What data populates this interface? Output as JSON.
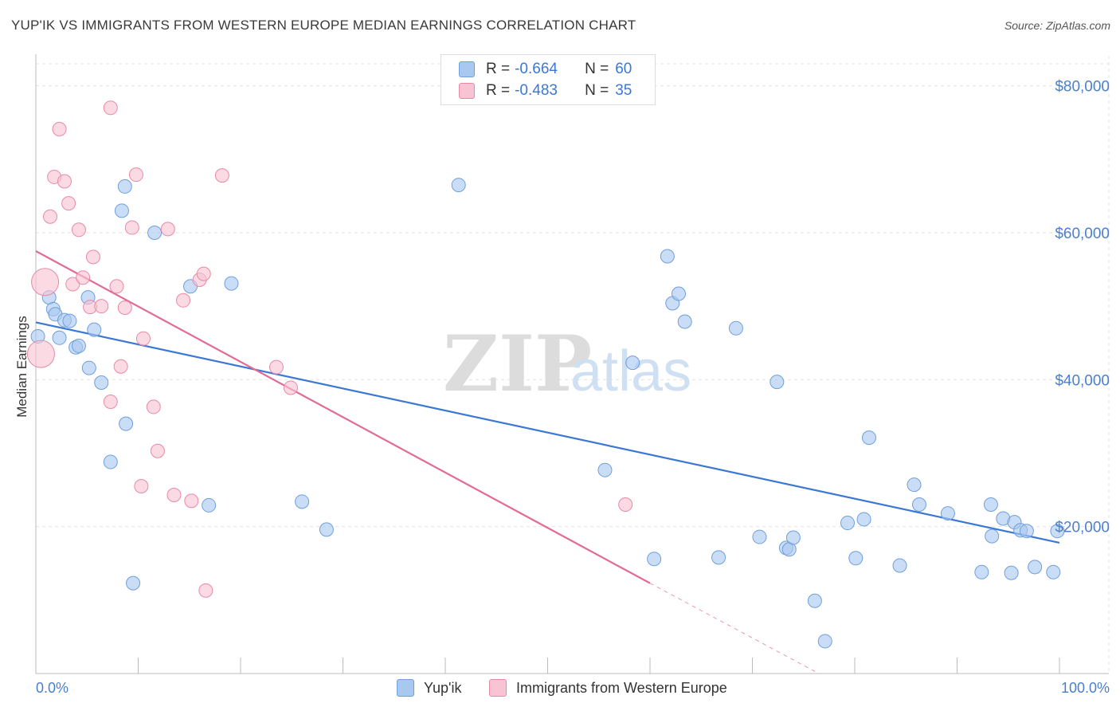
{
  "title": "YUP'IK VS IMMIGRANTS FROM WESTERN EUROPE MEDIAN EARNINGS CORRELATION CHART",
  "source": "Source: ZipAtlas.com",
  "watermark": {
    "zip": "ZIP",
    "atlas": "atlas"
  },
  "legend": {
    "rows": [
      {
        "r_label": "R = ",
        "r_value": "-0.664",
        "n_label": "N = ",
        "n_value": "60",
        "color": "#a9c8f0",
        "border": "#6f9fdc"
      },
      {
        "r_label": "R = ",
        "r_value": "-0.483",
        "n_label": "N = ",
        "n_value": "35",
        "color": "#f8c3d3",
        "border": "#e88aa7"
      }
    ]
  },
  "bottom_legend": {
    "items": [
      {
        "label": "Yup'ik",
        "color": "#a9c8f0",
        "border": "#6f9fdc"
      },
      {
        "label": "Immigrants from Western Europe",
        "color": "#f8c3d3",
        "border": "#e88aa7"
      }
    ]
  },
  "chart_data": {
    "type": "scatter",
    "title": "YUP'IK VS IMMIGRANTS FROM WESTERN EUROPE MEDIAN EARNINGS CORRELATION CHART",
    "xlabel": "",
    "ylabel": "Median Earnings",
    "xlim": [
      0,
      100
    ],
    "ylim": [
      0,
      83000
    ],
    "x_tick_labels": [
      "0.0%",
      "100.0%"
    ],
    "y_ticks": [
      20000,
      40000,
      60000,
      80000
    ],
    "y_tick_labels": [
      "$20,000",
      "$40,000",
      "$60,000",
      "$80,000"
    ],
    "grid": true,
    "series": [
      {
        "name": "Yup'ik",
        "color": "#a9c8f0",
        "stroke": "#6f9fdc",
        "trend": {
          "x0": 0,
          "y0": 47800,
          "x1": 100,
          "y1": 17800,
          "color": "#3b78d6",
          "dashed_from": null
        },
        "points": [
          [
            0.2,
            45900
          ],
          [
            1.3,
            51200
          ],
          [
            1.7,
            49600
          ],
          [
            1.9,
            48900
          ],
          [
            2.3,
            45700
          ],
          [
            2.8,
            48100
          ],
          [
            3.3,
            48000
          ],
          [
            3.9,
            44400
          ],
          [
            4.2,
            44600
          ],
          [
            5.1,
            51200
          ],
          [
            5.2,
            41600
          ],
          [
            5.7,
            46800
          ],
          [
            6.4,
            39600
          ],
          [
            7.3,
            28800
          ],
          [
            8.4,
            63000
          ],
          [
            8.7,
            66300
          ],
          [
            8.8,
            34000
          ],
          [
            9.5,
            12300
          ],
          [
            11.6,
            60000
          ],
          [
            15.1,
            52700
          ],
          [
            16.9,
            22900
          ],
          [
            19.1,
            53100
          ],
          [
            26.0,
            23400
          ],
          [
            28.4,
            19600
          ],
          [
            41.3,
            66500
          ],
          [
            55.6,
            27700
          ],
          [
            58.3,
            42300
          ],
          [
            60.4,
            15600
          ],
          [
            62.2,
            50400
          ],
          [
            62.8,
            51700
          ],
          [
            61.7,
            56800
          ],
          [
            63.4,
            47900
          ],
          [
            66.7,
            15800
          ],
          [
            68.4,
            47000
          ],
          [
            70.7,
            18600
          ],
          [
            72.4,
            39700
          ],
          [
            73.3,
            17100
          ],
          [
            73.6,
            16900
          ],
          [
            74.0,
            18500
          ],
          [
            76.1,
            9900
          ],
          [
            77.1,
            4400
          ],
          [
            79.3,
            20500
          ],
          [
            80.1,
            15700
          ],
          [
            80.9,
            21000
          ],
          [
            81.4,
            32100
          ],
          [
            84.4,
            14700
          ],
          [
            85.8,
            25700
          ],
          [
            86.3,
            23000
          ],
          [
            89.1,
            21800
          ],
          [
            92.4,
            13800
          ],
          [
            93.3,
            23000
          ],
          [
            93.4,
            18700
          ],
          [
            94.5,
            21100
          ],
          [
            95.3,
            13700
          ],
          [
            95.6,
            20600
          ],
          [
            96.2,
            19500
          ],
          [
            96.8,
            19400
          ],
          [
            97.6,
            14500
          ],
          [
            99.4,
            13800
          ],
          [
            99.8,
            19400
          ]
        ]
      },
      {
        "name": "Immigrants from Western Europe",
        "color": "#f8c3d3",
        "stroke": "#e88aa7",
        "trend": {
          "x0": 0,
          "y0": 57500,
          "x1": 60.0,
          "y1": 12300,
          "x_dash_end": 76.5,
          "y_dash_end": 0,
          "color": "#e26b96"
        },
        "points": [
          [
            0.5,
            43500
          ],
          [
            0.9,
            53300
          ],
          [
            1.4,
            62200
          ],
          [
            1.8,
            67600
          ],
          [
            2.3,
            74100
          ],
          [
            2.8,
            67000
          ],
          [
            3.2,
            64000
          ],
          [
            3.6,
            53000
          ],
          [
            4.2,
            60400
          ],
          [
            4.6,
            53900
          ],
          [
            5.3,
            49900
          ],
          [
            5.6,
            56700
          ],
          [
            6.4,
            50000
          ],
          [
            7.3,
            77000
          ],
          [
            7.3,
            37000
          ],
          [
            7.9,
            52700
          ],
          [
            8.3,
            41800
          ],
          [
            8.7,
            49800
          ],
          [
            9.4,
            60700
          ],
          [
            9.8,
            67900
          ],
          [
            10.3,
            25500
          ],
          [
            10.5,
            45600
          ],
          [
            11.5,
            36300
          ],
          [
            11.9,
            30300
          ],
          [
            12.9,
            60500
          ],
          [
            13.5,
            24300
          ],
          [
            14.4,
            50800
          ],
          [
            15.2,
            23500
          ],
          [
            16.0,
            53600
          ],
          [
            16.4,
            54400
          ],
          [
            16.6,
            11300
          ],
          [
            18.2,
            67800
          ],
          [
            23.5,
            41700
          ],
          [
            24.9,
            38900
          ],
          [
            57.6,
            23000
          ]
        ]
      }
    ]
  }
}
